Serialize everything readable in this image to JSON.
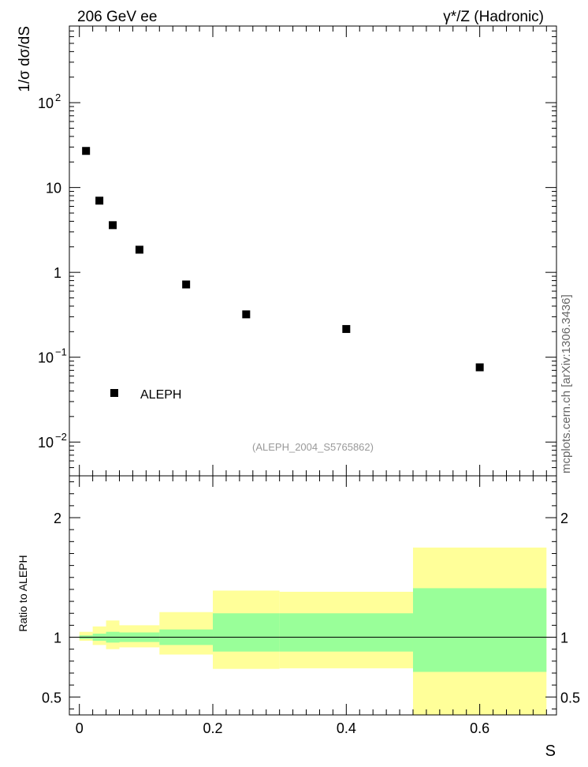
{
  "header": {
    "left_label": "206 GeV ee",
    "right_label": "γ*/Z (Hadronic)"
  },
  "side_label": "mcplots.cern.ch [arXiv:1306.3436]",
  "chart_data": [
    {
      "type": "scatter",
      "panel": "main",
      "ylabel": "1/σ  dσ/dS",
      "yscale": "log",
      "ylim": [
        0.004,
        800
      ],
      "xlim": [
        -0.015,
        0.715
      ],
      "yticks": [
        {
          "value": 0.01,
          "mantissa": "10",
          "exp": "−2"
        },
        {
          "value": 0.1,
          "mantissa": "10",
          "exp": "−1"
        },
        {
          "value": 1,
          "mantissa": "1",
          "exp": ""
        },
        {
          "value": 10,
          "mantissa": "10",
          "exp": ""
        },
        {
          "value": 100,
          "mantissa": "10",
          "exp": "2"
        }
      ],
      "series": [
        {
          "name": "ALEPH",
          "color": "#000000",
          "marker": "square",
          "x": [
            0.01,
            0.03,
            0.05,
            0.09,
            0.16,
            0.25,
            0.4,
            0.6
          ],
          "y": [
            27,
            7.0,
            3.6,
            1.85,
            0.72,
            0.32,
            0.215,
            0.076
          ]
        }
      ],
      "legend": {
        "position": "lower-left",
        "entries": [
          "ALEPH"
        ]
      },
      "annotation": "(ALEPH_2004_S5765862)"
    },
    {
      "type": "area",
      "panel": "ratio",
      "ylabel": "Ratio to ALEPH",
      "xlabel": "S",
      "ylim": [
        0.35,
        2.35
      ],
      "xlim": [
        -0.015,
        0.715
      ],
      "yticks": [
        0.5,
        1,
        2
      ],
      "xticks": [
        0,
        0.2,
        0.4,
        0.6
      ],
      "bins": [
        {
          "x0": 0.0,
          "x1": 0.02,
          "stat_lo": 0.985,
          "stat_hi": 1.015,
          "tot_lo": 0.97,
          "tot_hi": 1.045
        },
        {
          "x0": 0.02,
          "x1": 0.04,
          "stat_lo": 0.97,
          "stat_hi": 1.03,
          "tot_lo": 0.935,
          "tot_hi": 1.09
        },
        {
          "x0": 0.04,
          "x1": 0.06,
          "stat_lo": 0.955,
          "stat_hi": 1.045,
          "tot_lo": 0.9,
          "tot_hi": 1.14
        },
        {
          "x0": 0.06,
          "x1": 0.12,
          "stat_lo": 0.96,
          "stat_hi": 1.04,
          "tot_lo": 0.915,
          "tot_hi": 1.1
        },
        {
          "x0": 0.12,
          "x1": 0.2,
          "stat_lo": 0.935,
          "stat_hi": 1.065,
          "tot_lo": 0.855,
          "tot_hi": 1.21
        },
        {
          "x0": 0.2,
          "x1": 0.3,
          "stat_lo": 0.88,
          "stat_hi": 1.2,
          "tot_lo": 0.735,
          "tot_hi": 1.39
        },
        {
          "x0": 0.3,
          "x1": 0.5,
          "stat_lo": 0.88,
          "stat_hi": 1.2,
          "tot_lo": 0.74,
          "tot_hi": 1.38
        },
        {
          "x0": 0.5,
          "x1": 0.7,
          "stat_lo": 0.71,
          "stat_hi": 1.41,
          "tot_lo": 0.35,
          "tot_hi": 1.75
        }
      ],
      "colors": {
        "stat": "#99ff99",
        "total": "#ffff99",
        "reference_line": "#000000"
      }
    }
  ]
}
